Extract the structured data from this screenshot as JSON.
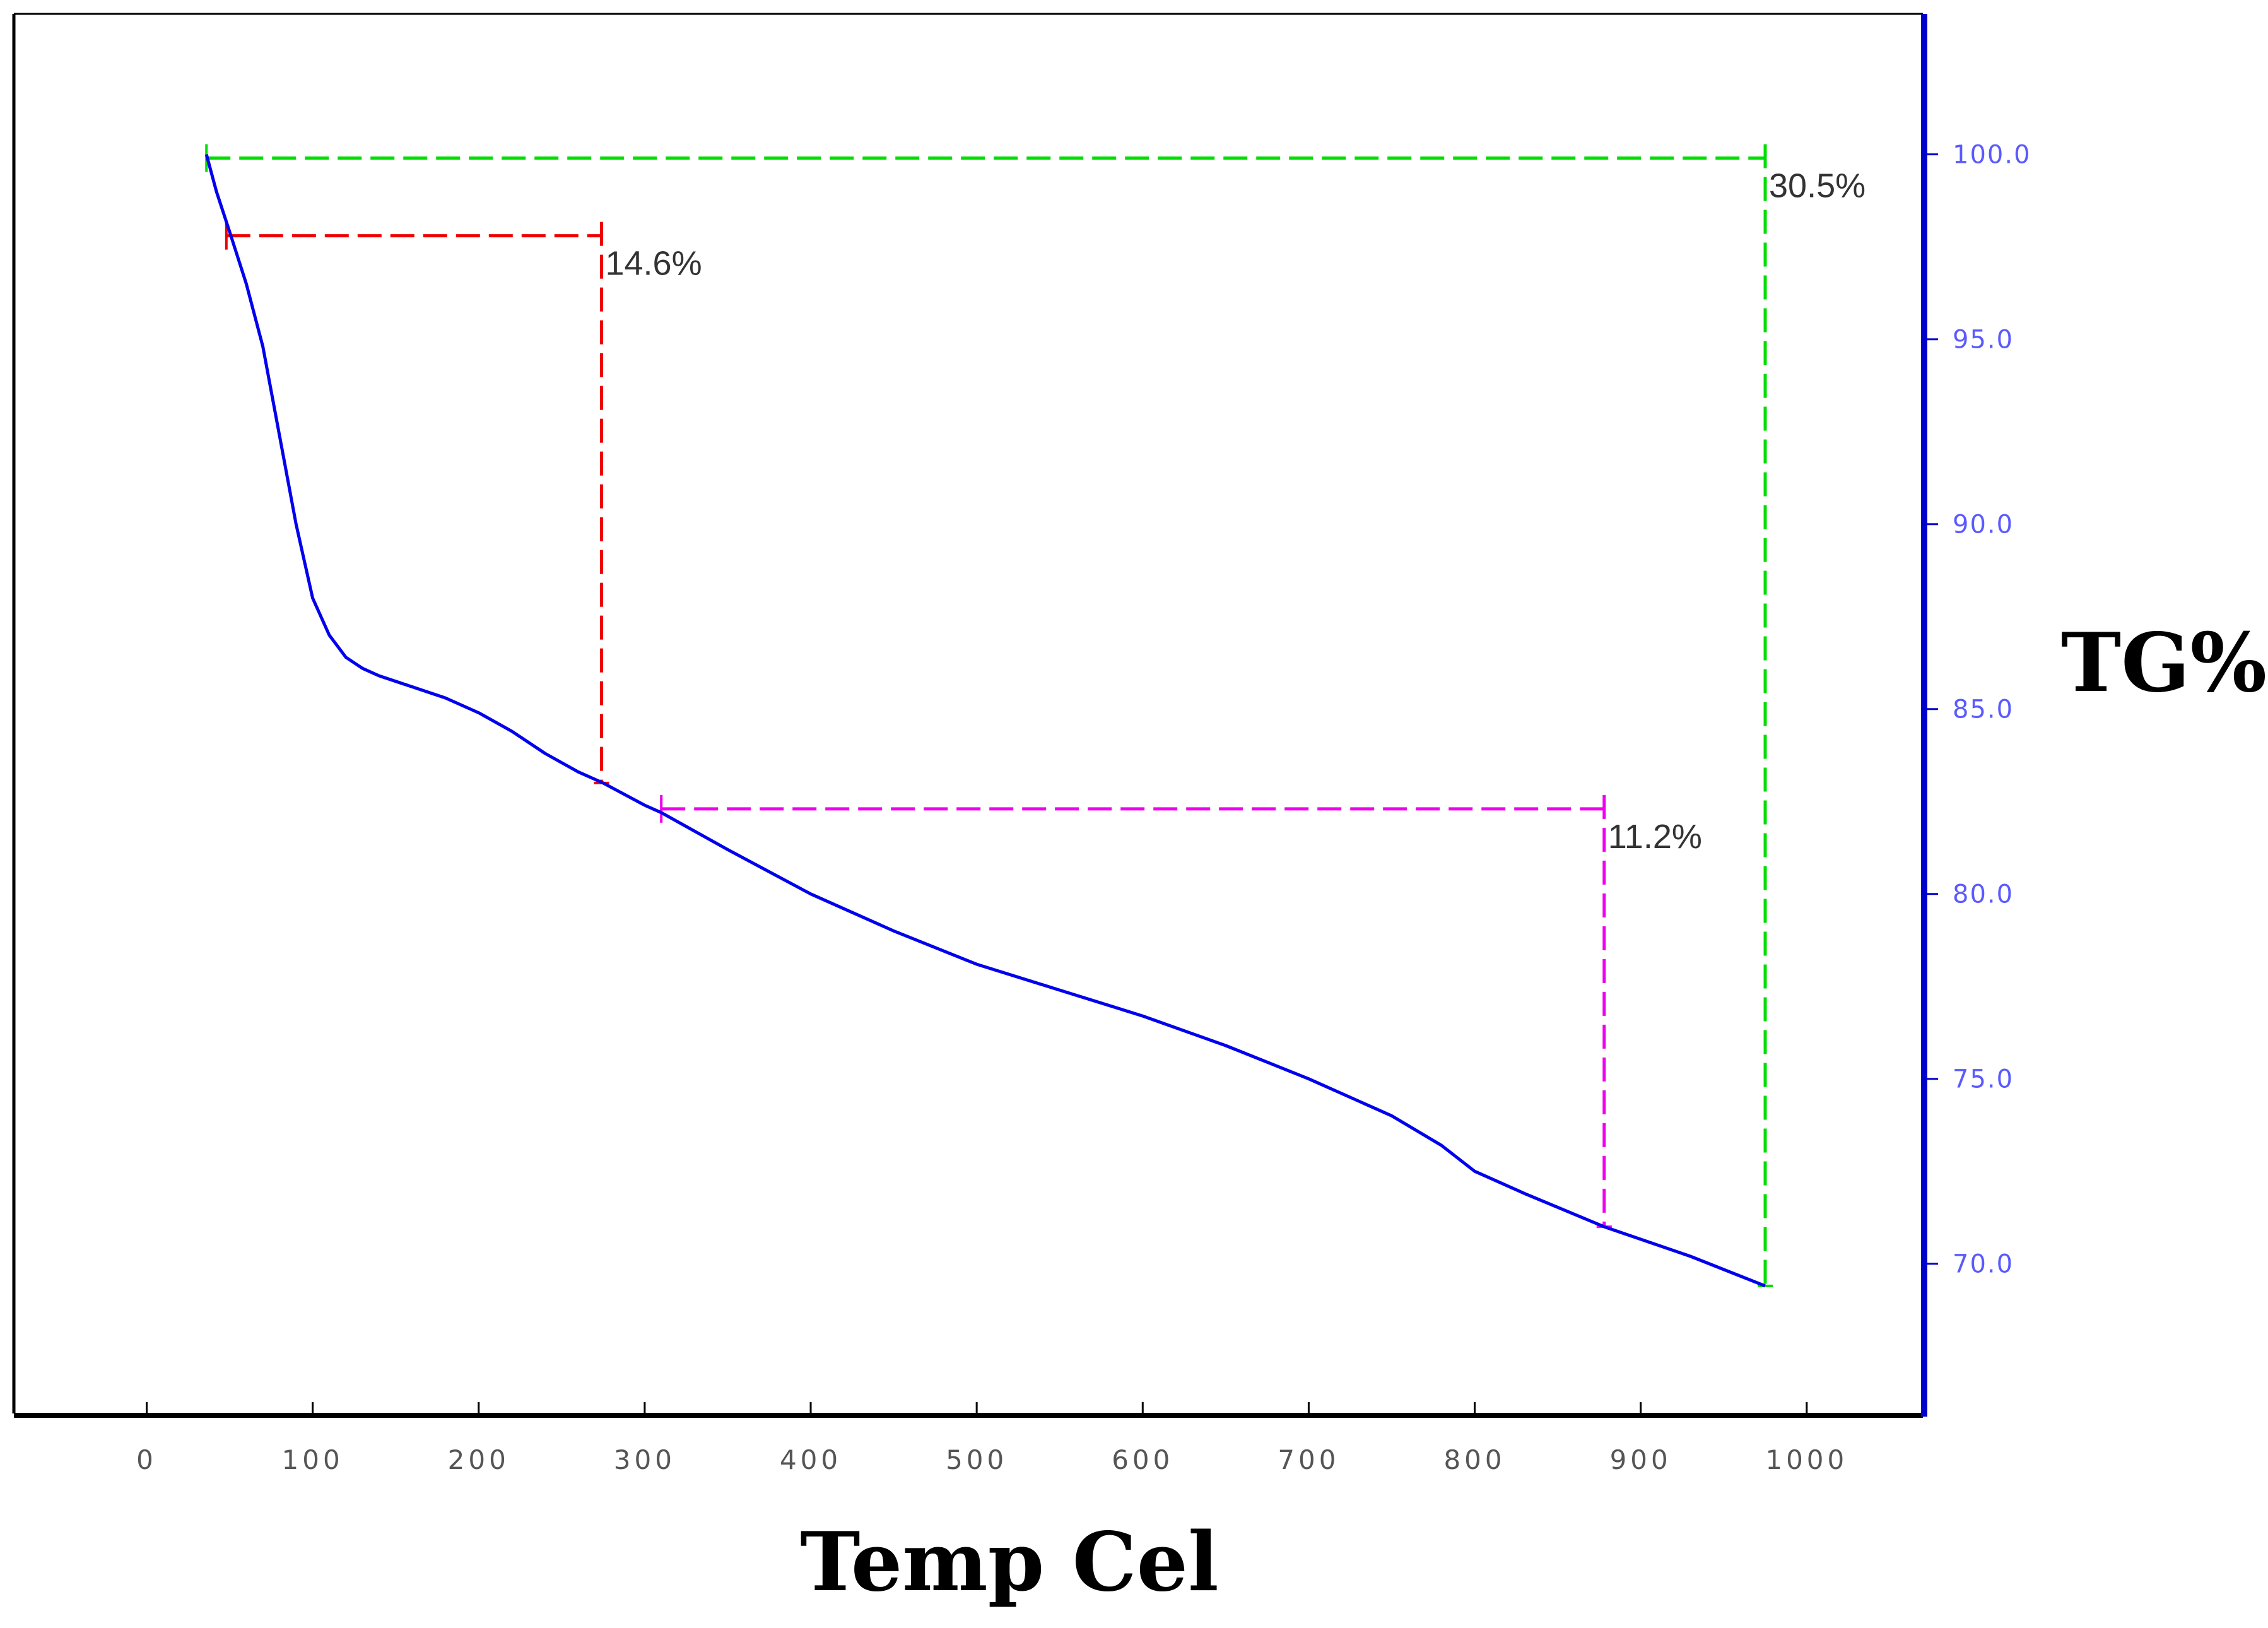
{
  "chart_data": {
    "type": "line",
    "title": "",
    "xlabel": "Temp Cel",
    "ylabel": "TG%",
    "xlim": [
      -80,
      1070
    ],
    "ylim": [
      65.9,
      103.8
    ],
    "x_ticks": [
      0,
      100,
      200,
      300,
      400,
      500,
      600,
      700,
      800,
      900,
      1000
    ],
    "x_tick_labels": [
      "0",
      "100",
      "200",
      "300",
      "400",
      "500",
      "600",
      "700",
      "800",
      "900",
      "1000"
    ],
    "y_ticks": [
      70,
      75,
      80,
      85,
      90,
      95,
      100
    ],
    "y_tick_labels": [
      "70.0",
      "75.0",
      "80.0",
      "85.0",
      "90.0",
      "95.0",
      "100.0"
    ],
    "y_axis_side": "right",
    "grid": false,
    "series": [
      {
        "name": "TG",
        "color": "#0000ee",
        "x": [
          36,
          42,
          50,
          60,
          70,
          80,
          90,
          100,
          110,
          120,
          130,
          140,
          160,
          180,
          200,
          220,
          240,
          260,
          275,
          300,
          310,
          350,
          400,
          450,
          500,
          550,
          600,
          650,
          700,
          750,
          780,
          800,
          830,
          878,
          930,
          975
        ],
        "y": [
          100.0,
          99.0,
          97.9,
          96.5,
          94.8,
          92.4,
          90.0,
          88.0,
          87.0,
          86.4,
          86.1,
          85.9,
          85.6,
          85.3,
          84.9,
          84.4,
          83.8,
          83.3,
          83.0,
          82.4,
          82.2,
          81.2,
          80.0,
          79.0,
          78.1,
          77.4,
          76.7,
          75.9,
          75.0,
          74.0,
          73.2,
          72.5,
          71.9,
          71.0,
          70.2,
          69.4
        ]
      }
    ],
    "annotations": [
      {
        "label": "14.6%",
        "color": "#ee0000",
        "x_start": 48,
        "x_end": 274,
        "y_top": 97.8,
        "y_bottom": 83.0
      },
      {
        "label": "11.2%",
        "color": "#ee00ee",
        "x_start": 310,
        "x_end": 878,
        "y_top": 82.3,
        "y_bottom": 71.0
      },
      {
        "label": "30.5%",
        "color": "#00dd00",
        "x_start": 36,
        "x_end": 975,
        "y_top": 99.9,
        "y_bottom": 69.4
      }
    ],
    "colors": {
      "axis_x": "#000000",
      "axis_y": "#0000cc",
      "line": "#0000ee"
    }
  }
}
